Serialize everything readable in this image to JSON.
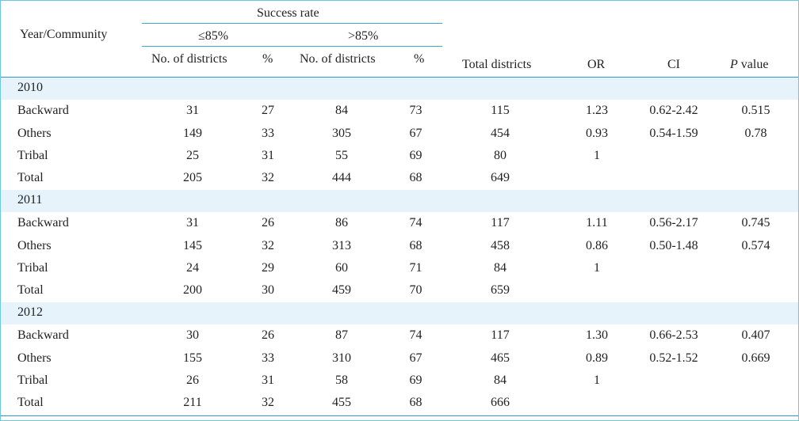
{
  "header": {
    "year_community": "Year/Community",
    "success_rate": "Success rate",
    "le85": "≤85%",
    "gt85": ">85%",
    "cols": [
      "No. of districts",
      "%",
      "No. of districts",
      "%",
      "Total districts",
      "OR",
      "CI"
    ],
    "p_italic": "P",
    "p_rest": " value"
  },
  "sections": [
    {
      "year": "2010",
      "rows": [
        [
          "Backward",
          "31",
          "27",
          "84",
          "73",
          "115",
          "1.23",
          "0.62-2.42",
          "0.515"
        ],
        [
          "Others",
          "149",
          "33",
          "305",
          "67",
          "454",
          "0.93",
          "0.54-1.59",
          "0.78"
        ],
        [
          "Tribal",
          "25",
          "31",
          "55",
          "69",
          "80",
          "1",
          "",
          ""
        ],
        [
          "Total",
          "205",
          "32",
          "444",
          "68",
          "649",
          "",
          "",
          ""
        ]
      ]
    },
    {
      "year": "2011",
      "rows": [
        [
          "Backward",
          "31",
          "26",
          "86",
          "74",
          "117",
          "1.11",
          "0.56-2.17",
          "0.745"
        ],
        [
          "Others",
          "145",
          "32",
          "313",
          "68",
          "458",
          "0.86",
          "0.50-1.48",
          "0.574"
        ],
        [
          "Tribal",
          "24",
          "29",
          "60",
          "71",
          "84",
          "1",
          "",
          ""
        ],
        [
          "Total",
          "200",
          "30",
          "459",
          "70",
          "659",
          "",
          "",
          ""
        ]
      ]
    },
    {
      "year": "2012",
      "rows": [
        [
          "Backward",
          "30",
          "26",
          "87",
          "74",
          "117",
          "1.30",
          "0.66-2.53",
          "0.407"
        ],
        [
          "Others",
          "155",
          "33",
          "310",
          "67",
          "465",
          "0.89",
          "0.52-1.52",
          "0.669"
        ],
        [
          "Tribal",
          "26",
          "31",
          "58",
          "69",
          "84",
          "1",
          "",
          ""
        ],
        [
          "Total",
          "211",
          "32",
          "455",
          "68",
          "666",
          "",
          "",
          ""
        ]
      ]
    }
  ]
}
